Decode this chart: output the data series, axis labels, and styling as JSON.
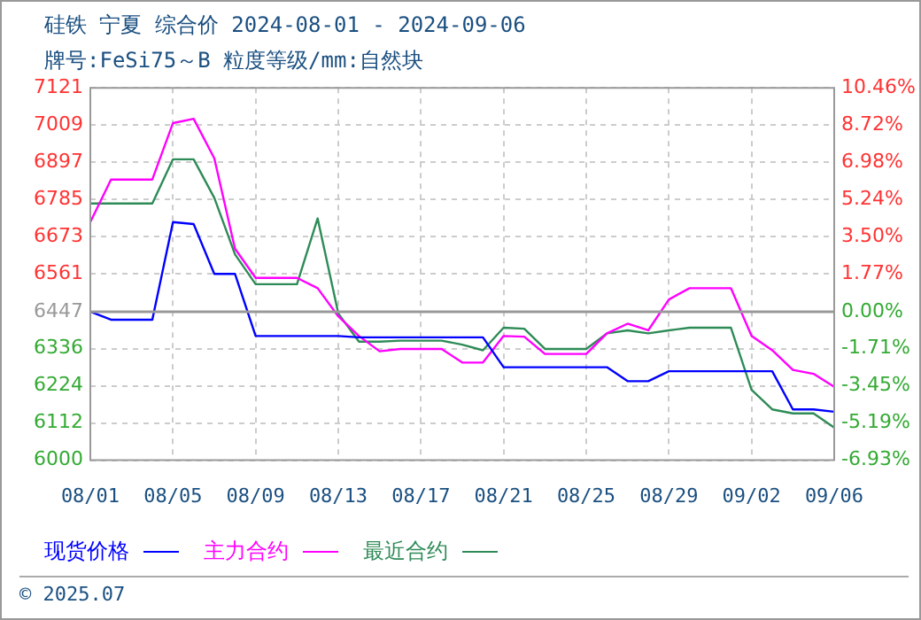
{
  "chart_data": {
    "type": "line",
    "title": "硅铁 宁夏 综合价 2024-08-01 - 2024-09-06",
    "subtitle": "牌号:FeSi75～B 粒度等级/mm:自然块",
    "categories": [
      "08/01",
      null,
      null,
      null,
      "08/05",
      null,
      null,
      null,
      "08/09",
      null,
      null,
      null,
      "08/13",
      null,
      null,
      null,
      "08/17",
      null,
      null,
      null,
      "08/21",
      null,
      null,
      null,
      "08/25",
      null,
      null,
      null,
      "08/29",
      null,
      null,
      null,
      "09/02",
      null,
      null,
      null,
      "09/06"
    ],
    "series": [
      {
        "name": "现货价格",
        "color": "#0000ff",
        "values": [
          6447,
          6423,
          6423,
          6423,
          6717,
          6711,
          6561,
          6561,
          6374,
          6374,
          6374,
          6374,
          6374,
          6370,
          6370,
          6370,
          6370,
          6370,
          6370,
          6370,
          6280,
          6280,
          6280,
          6280,
          6280,
          6280,
          6238,
          6238,
          6268,
          6268,
          6268,
          6268,
          6268,
          6268,
          6153,
          6153,
          6146
        ]
      },
      {
        "name": "主力合约",
        "color": "#ff00ff",
        "values": [
          6717,
          6845,
          6845,
          6845,
          7015,
          7028,
          6909,
          6637,
          6549,
          6549,
          6549,
          6518,
          6433,
          6374,
          6328,
          6335,
          6335,
          6335,
          6294,
          6294,
          6374,
          6372,
          6320,
          6320,
          6320,
          6382,
          6411,
          6391,
          6484,
          6518,
          6518,
          6518,
          6374,
          6331,
          6272,
          6260,
          6221
        ]
      },
      {
        "name": "最近合约",
        "color": "#2e8b57",
        "values": [
          6773,
          6773,
          6773,
          6773,
          6906,
          6906,
          6790,
          6620,
          6530,
          6530,
          6530,
          6728,
          6442,
          6357,
          6357,
          6360,
          6360,
          6360,
          6348,
          6331,
          6399,
          6396,
          6335,
          6335,
          6335,
          6382,
          6391,
          6382,
          6391,
          6399,
          6399,
          6399,
          6212,
          6153,
          6141,
          6141,
          6098
        ]
      }
    ],
    "ylim": [
      6000,
      7121
    ],
    "yticks": [
      6000,
      6112,
      6224,
      6336,
      6447,
      6561,
      6673,
      6785,
      6897,
      7009,
      7121
    ],
    "y2lim": [
      -6.93,
      10.46
    ],
    "y2ticks": [
      {
        "value": -6.93,
        "label": "-6.93%"
      },
      {
        "value": -5.19,
        "label": "-5.19%"
      },
      {
        "value": -3.45,
        "label": "-3.45%"
      },
      {
        "value": -1.71,
        "label": "-1.71%"
      },
      {
        "value": 0,
        "label": "0.00%"
      },
      {
        "value": 1.77,
        "label": "1.77%"
      },
      {
        "value": 3.5,
        "label": "3.50%"
      },
      {
        "value": 5.24,
        "label": "5.24%"
      },
      {
        "value": 6.98,
        "label": "6.98%"
      },
      {
        "value": 8.72,
        "label": "8.72%"
      },
      {
        "value": 10.46,
        "label": "10.46%"
      }
    ],
    "ref_lines": [
      {
        "axis": "y",
        "value": 6447,
        "color": "#999999"
      }
    ],
    "grid": true,
    "legend": "bottom",
    "marker": "none",
    "line_style": "solid",
    "annotations": [
      "© 2025.07"
    ]
  }
}
